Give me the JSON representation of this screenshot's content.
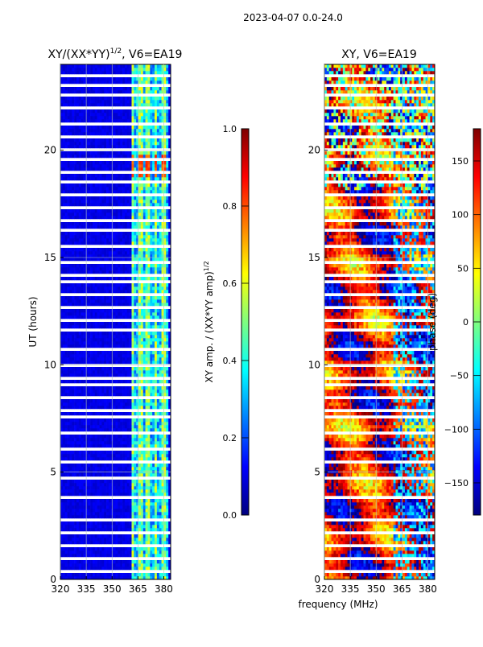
{
  "figure": {
    "suptitle": "2023-04-07 0.0-24.0",
    "xlabel": "frequency (MHz)"
  },
  "colors": {
    "jet": [
      "#00007f",
      "#0000ff",
      "#007fff",
      "#00ffff",
      "#7fff7f",
      "#ffff00",
      "#ff7f00",
      "#ff0000",
      "#7f0000"
    ]
  },
  "chart_data": [
    {
      "type": "heatmap",
      "title": "XY/(XX*YY)",
      "title_exp": "1/2",
      "title_suffix": ", V6=EA19",
      "xlabel": "",
      "ylabel": "UT (hours)",
      "xlim": [
        320,
        384
      ],
      "ylim": [
        0,
        24
      ],
      "xticks": [
        "320",
        "335",
        "350",
        "365",
        "380"
      ],
      "yticks": [
        "0",
        "5",
        "10",
        "15",
        "20"
      ],
      "grid": true,
      "colorbar": {
        "label": "XY amp. / (XX*YY amp)",
        "label_exp": "1/2",
        "range": [
          0.0,
          1.0
        ],
        "ticks": [
          "0.0",
          "0.2",
          "0.4",
          "0.6",
          "0.8",
          "1.0"
        ]
      },
      "description_values": {
        "background_level": 0.1,
        "high_band_MHz": [
          361,
          382
        ],
        "band_level": 0.45
      }
    },
    {
      "type": "heatmap",
      "title": "XY, V6=EA19",
      "xlabel": "frequency (MHz)",
      "ylabel": "",
      "xlim": [
        320,
        384
      ],
      "ylim": [
        0,
        24
      ],
      "xticks": [
        "320",
        "335",
        "350",
        "365",
        "380"
      ],
      "yticks": [
        "0",
        "5",
        "10",
        "15",
        "20"
      ],
      "grid": true,
      "colorbar": {
        "label": "phase (deg)",
        "range": [
          -180,
          180
        ],
        "ticks": [
          "−150",
          "−100",
          "−50",
          "0",
          "50",
          "100",
          "150"
        ]
      },
      "description_values": {
        "dominant_phase_deg": 140
      }
    }
  ]
}
